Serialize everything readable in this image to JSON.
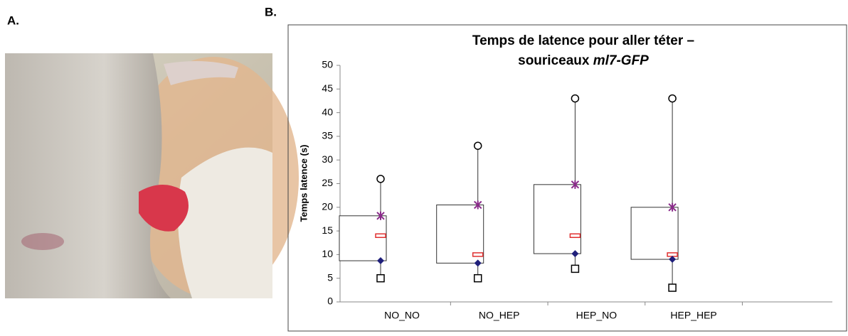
{
  "panels": {
    "a_label": "A.",
    "b_label": "B."
  },
  "chart_data": {
    "type": "box",
    "title": {
      "line1": "Temps de latence pour aller téter –",
      "line2": "souriceaux",
      "line2_italic": "ml7-GFP"
    },
    "ylabel": "Temps latence (s)",
    "categories": [
      "NO_NO",
      "NO_HEP",
      "HEP_NO",
      "HEP_HEP"
    ],
    "min": [
      5,
      5,
      7,
      3
    ],
    "q1": [
      8.7,
      8.2,
      10.2,
      9
    ],
    "median": [
      14,
      10,
      14,
      10
    ],
    "q3": [
      18.2,
      20.5,
      24.8,
      20
    ],
    "max": [
      26,
      33,
      43,
      43
    ],
    "colors": {
      "min": "#000000",
      "q1": "#1f1f7a",
      "median": "#e03030",
      "q3": "#8a2a8a",
      "max": "#000000"
    },
    "ylim": [
      0,
      50
    ],
    "yticks": [
      0,
      5,
      10,
      15,
      20,
      25,
      30,
      35,
      40,
      45,
      50
    ]
  }
}
